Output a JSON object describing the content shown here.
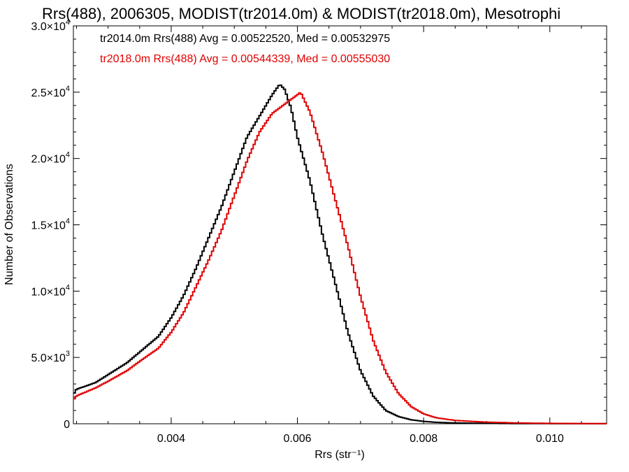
{
  "chart_data": {
    "type": "line",
    "title": "Rrs(488), 2006305, MODIST(tr2014.0m) & MODIST(tr2018.0m), Mesotrophi",
    "xlabel": "Rrs (str⁻¹)",
    "ylabel": "Number of Observations",
    "xlim": [
      0.00245,
      0.0109
    ],
    "ylim": [
      0,
      30000
    ],
    "x_ticks": [
      {
        "value": 0.004,
        "label": "0.004"
      },
      {
        "value": 0.006,
        "label": "0.006"
      },
      {
        "value": 0.008,
        "label": "0.008"
      },
      {
        "value": 0.01,
        "label": "0.010"
      }
    ],
    "y_ticks": [
      {
        "value": 0,
        "mant": "0",
        "exp": ""
      },
      {
        "value": 5000,
        "mant": "5.0×10",
        "exp": "3"
      },
      {
        "value": 10000,
        "mant": "1.0×10",
        "exp": "4"
      },
      {
        "value": 15000,
        "mant": "1.5×10",
        "exp": "4"
      },
      {
        "value": 20000,
        "mant": "2.0×10",
        "exp": "4"
      },
      {
        "value": 25000,
        "mant": "2.5×10",
        "exp": "4"
      },
      {
        "value": 30000,
        "mant": "3.0×10",
        "exp": "4"
      }
    ],
    "grid": false,
    "legend_position": "top-left",
    "series": [
      {
        "name": "tr2014.0m Rrs(488) Avg = 0.00522520, Med = 0.00532975",
        "color": "#000000",
        "points": [
          [
            0.00245,
            2200
          ],
          [
            0.0025,
            2600
          ],
          [
            0.0028,
            3100
          ],
          [
            0.003,
            3700
          ],
          [
            0.0033,
            4600
          ],
          [
            0.0035,
            5400
          ],
          [
            0.0038,
            6600
          ],
          [
            0.004,
            8000
          ],
          [
            0.0042,
            9700
          ],
          [
            0.0044,
            11800
          ],
          [
            0.0046,
            14100
          ],
          [
            0.0048,
            16400
          ],
          [
            0.005,
            19000
          ],
          [
            0.0052,
            21600
          ],
          [
            0.0054,
            23200
          ],
          [
            0.0056,
            24800
          ],
          [
            0.00572,
            25600
          ],
          [
            0.0058,
            25200
          ],
          [
            0.0059,
            23800
          ],
          [
            0.006,
            21600
          ],
          [
            0.0062,
            18300
          ],
          [
            0.0064,
            14200
          ],
          [
            0.0066,
            10600
          ],
          [
            0.0068,
            6900
          ],
          [
            0.007,
            4000
          ],
          [
            0.0072,
            2100
          ],
          [
            0.0074,
            1000
          ],
          [
            0.0076,
            550
          ],
          [
            0.0078,
            300
          ],
          [
            0.008,
            180
          ],
          [
            0.0082,
            110
          ],
          [
            0.0085,
            60
          ],
          [
            0.009,
            30
          ],
          [
            0.0095,
            15
          ],
          [
            0.01,
            8
          ],
          [
            0.0109,
            3
          ]
        ]
      },
      {
        "name": "tr2018.0m Rrs(488) Avg = 0.00544339, Med = 0.00555030",
        "color": "#e00000",
        "points": [
          [
            0.00245,
            1800
          ],
          [
            0.0025,
            2100
          ],
          [
            0.0028,
            2700
          ],
          [
            0.003,
            3200
          ],
          [
            0.0033,
            4000
          ],
          [
            0.0035,
            4700
          ],
          [
            0.0038,
            5700
          ],
          [
            0.004,
            6900
          ],
          [
            0.0042,
            8400
          ],
          [
            0.0044,
            10400
          ],
          [
            0.0046,
            12400
          ],
          [
            0.0048,
            14600
          ],
          [
            0.005,
            17200
          ],
          [
            0.0052,
            19800
          ],
          [
            0.0054,
            22000
          ],
          [
            0.0056,
            23400
          ],
          [
            0.0058,
            24100
          ],
          [
            0.006,
            24800
          ],
          [
            0.00605,
            25000
          ],
          [
            0.0062,
            23500
          ],
          [
            0.0064,
            20400
          ],
          [
            0.0066,
            16900
          ],
          [
            0.0068,
            13400
          ],
          [
            0.007,
            9600
          ],
          [
            0.0072,
            6300
          ],
          [
            0.0074,
            3900
          ],
          [
            0.0076,
            2300
          ],
          [
            0.0078,
            1300
          ],
          [
            0.008,
            750
          ],
          [
            0.0082,
            450
          ],
          [
            0.0085,
            250
          ],
          [
            0.009,
            120
          ],
          [
            0.0095,
            60
          ],
          [
            0.01,
            30
          ],
          [
            0.0109,
            10
          ]
        ]
      }
    ]
  }
}
